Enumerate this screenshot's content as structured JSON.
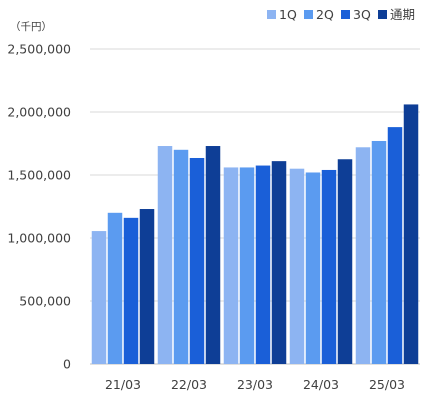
{
  "chart_data": {
    "type": "bar",
    "title": "",
    "unit_label": "（千円）",
    "xlabel": "",
    "ylabel": "",
    "categories": [
      "21/03",
      "22/03",
      "23/03",
      "24/03",
      "25/03"
    ],
    "series": [
      {
        "name": "1Q",
        "color": "#8db4f2",
        "values": [
          1055000,
          1730000,
          1560000,
          1550000,
          1720000
        ]
      },
      {
        "name": "2Q",
        "color": "#5b9bf0",
        "values": [
          1200000,
          1700000,
          1560000,
          1520000,
          1770000
        ]
      },
      {
        "name": "3Q",
        "color": "#1a5fd8",
        "values": [
          1160000,
          1635000,
          1575000,
          1540000,
          1880000
        ]
      },
      {
        "name": "通期",
        "color": "#0e3e96",
        "values": [
          1230000,
          1730000,
          1610000,
          1625000,
          2060000
        ]
      }
    ],
    "ylim": [
      0,
      2500000
    ],
    "yticks": [
      "0",
      "500,000",
      "1,000,000",
      "1,500,000",
      "2,000,000",
      "2,500,000"
    ],
    "ytick_values": [
      0,
      500000,
      1000000,
      1500000,
      2000000,
      2500000
    ],
    "grid": true,
    "legend_position": "top-right"
  }
}
